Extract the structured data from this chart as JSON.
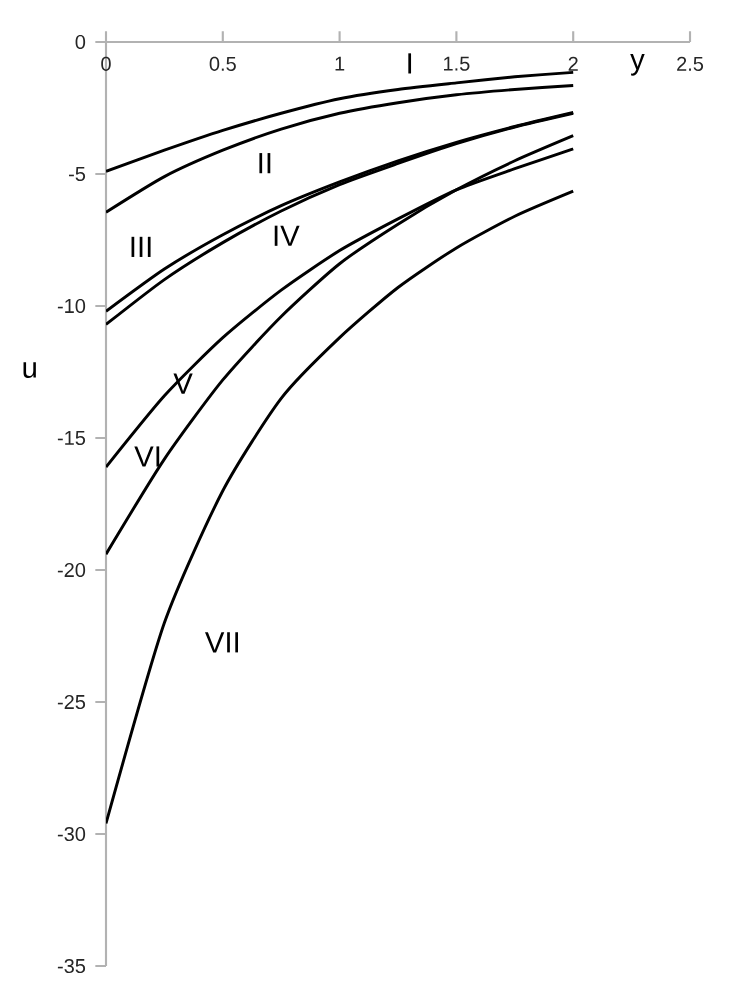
{
  "chart_data": {
    "type": "line",
    "xlabel": "y",
    "ylabel": "u",
    "x": [
      0,
      0.25,
      0.5,
      0.75,
      1,
      1.25,
      1.5,
      1.75,
      2
    ],
    "series": [
      {
        "name": "I",
        "color": "#000000",
        "values": [
          -4.9,
          -4.1,
          -3.35,
          -2.7,
          -2.15,
          -1.8,
          -1.55,
          -1.32,
          -1.15
        ]
      },
      {
        "name": "II",
        "color": "#000000",
        "values": [
          -6.45,
          -5.1,
          -4.1,
          -3.3,
          -2.7,
          -2.3,
          -2.0,
          -1.8,
          -1.65
        ]
      },
      {
        "name": "III",
        "color": "#000000",
        "values": [
          -10.2,
          -8.6,
          -7.3,
          -6.2,
          -5.3,
          -4.5,
          -3.8,
          -3.2,
          -2.67
        ]
      },
      {
        "name": "IV",
        "color": "#000000",
        "values": [
          -10.7,
          -9.0,
          -7.6,
          -6.4,
          -5.4,
          -4.6,
          -3.85,
          -3.22,
          -2.7
        ]
      },
      {
        "name": "V",
        "color": "#000000",
        "values": [
          -16.1,
          -13.4,
          -11.2,
          -9.4,
          -7.9,
          -6.7,
          -5.6,
          -4.8,
          -4.05
        ]
      },
      {
        "name": "VI",
        "color": "#000000",
        "values": [
          -19.4,
          -15.8,
          -12.8,
          -10.4,
          -8.4,
          -6.9,
          -5.6,
          -4.5,
          -3.55
        ]
      },
      {
        "name": "VII",
        "color": "#000000",
        "values": [
          -29.6,
          -22.0,
          -17.0,
          -13.5,
          -11.2,
          -9.3,
          -7.8,
          -6.6,
          -5.65
        ]
      }
    ],
    "xlim": [
      0,
      2.5
    ],
    "xticks": [
      0,
      0.5,
      1,
      1.5,
      2,
      2.5
    ],
    "ylim": [
      -35,
      0
    ],
    "yticks": [
      0,
      -5,
      -10,
      -15,
      -20,
      -25,
      -30,
      -35
    ],
    "grid": false,
    "legend": false,
    "marker": "none",
    "line_style": "solid"
  }
}
